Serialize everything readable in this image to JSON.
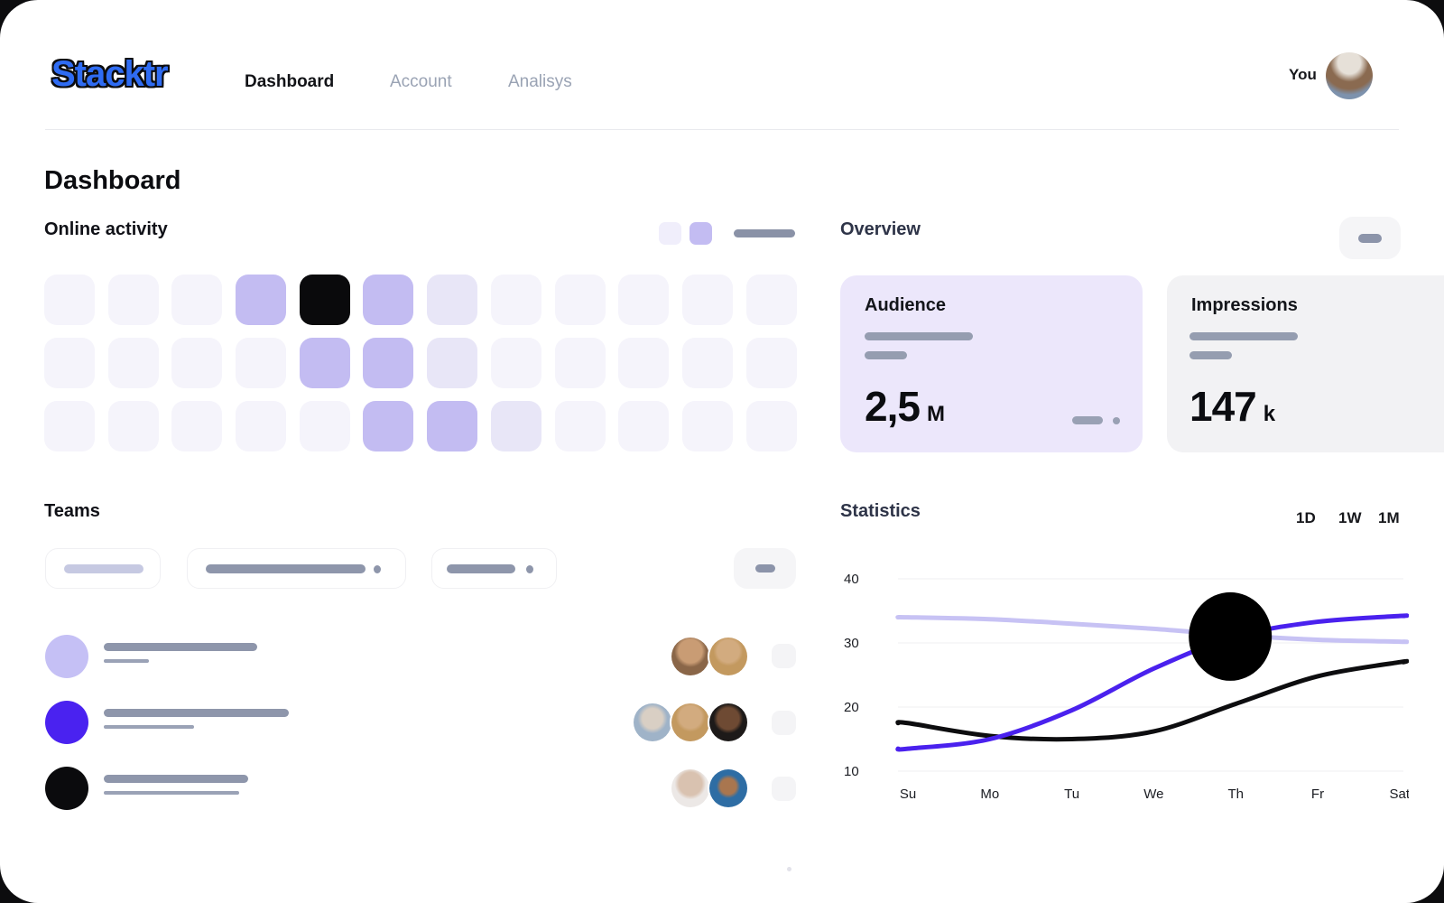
{
  "header": {
    "logo": "Stacktr",
    "nav": {
      "items": [
        {
          "label": "Dashboard"
        },
        {
          "label": "Account"
        },
        {
          "label": "Analisys"
        }
      ]
    },
    "user": {
      "label": "You"
    }
  },
  "page_title": "Dashboard",
  "online_activity": {
    "title": "Online activity",
    "grid": {
      "levels": {
        "0": "#f5f4fb",
        "1": "#e8e6f7",
        "2": "#c3bcf2",
        "3": "#0a0a0c"
      },
      "cells": [
        [
          0,
          0,
          0,
          2,
          3,
          2,
          1,
          0,
          0,
          0,
          0,
          0
        ],
        [
          0,
          0,
          0,
          0,
          2,
          2,
          1,
          0,
          0,
          0,
          0,
          0
        ],
        [
          0,
          0,
          0,
          0,
          0,
          2,
          2,
          1,
          0,
          0,
          0,
          0
        ]
      ]
    }
  },
  "overview": {
    "title": "Overview",
    "cards": [
      {
        "title": "Audience",
        "value": "2,5",
        "unit": "M",
        "bg": "#ece7fb"
      },
      {
        "title": "Impressions",
        "value": "147",
        "unit": "k",
        "bg": "#f2f2f4"
      }
    ]
  },
  "teams": {
    "title": "Teams"
  },
  "statistics": {
    "title": "Statistics",
    "ranges": [
      "1D",
      "1W",
      "1M"
    ],
    "chart_data": {
      "type": "line",
      "categories": [
        "Su",
        "Mo",
        "Tu",
        "We",
        "Th",
        "Fr",
        "Sat"
      ],
      "series": [
        {
          "name": "previous-period",
          "color": "#c7c2f4",
          "values": [
            34,
            33.7,
            33,
            32.2,
            31.2,
            30.5,
            30.2
          ]
        },
        {
          "name": "baseline",
          "color": "#0d0d0f",
          "values": [
            17.5,
            15.5,
            15,
            16.2,
            20.5,
            24.8,
            27
          ]
        },
        {
          "name": "current",
          "color": "#4a21ee",
          "values": [
            13.5,
            15,
            19.5,
            26,
            31,
            33.3,
            34.2
          ]
        }
      ],
      "marker": {
        "category": "Th",
        "value": 31,
        "color": "#000000"
      },
      "ylim": [
        10,
        40
      ],
      "yticks": [
        40,
        30,
        20,
        10
      ],
      "grid": true,
      "legend_position": "none"
    }
  },
  "colors": {
    "accent": "#c3bcf2",
    "accent_strong": "#4a21ee",
    "skeleton": "#8e96ab",
    "card_lavender": "#ece7fb",
    "card_gray": "#f2f2f4"
  }
}
